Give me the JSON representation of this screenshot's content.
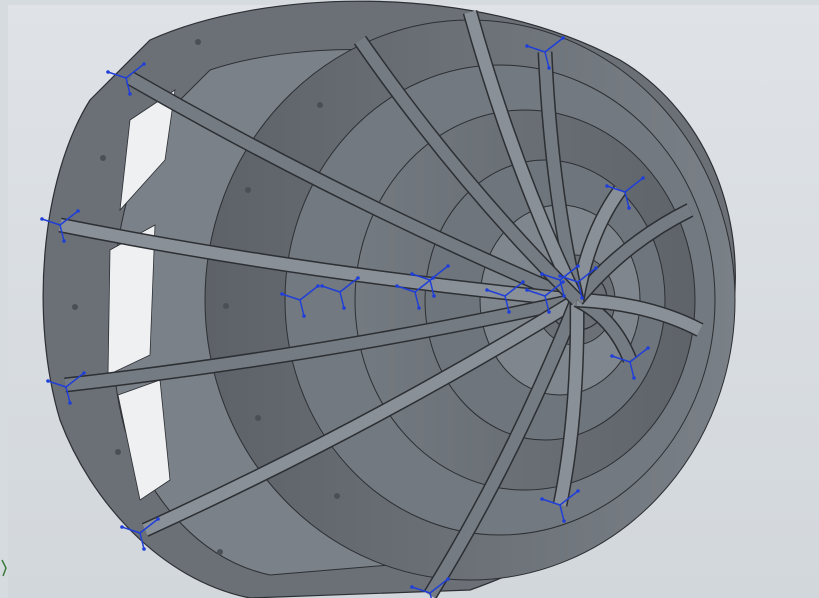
{
  "viewport": {
    "background": "#d6dbe0",
    "model_color": "#6b7077",
    "model_edge": "#2c2f33",
    "highlight": "#8f959c",
    "triad_color": "#1f3fd8"
  },
  "model": {
    "type": "spherical-frame",
    "ribs": 16,
    "rings": 6,
    "icons": {
      "part": "3d-part-icon",
      "triad": "coordinate-triad-icon"
    }
  }
}
